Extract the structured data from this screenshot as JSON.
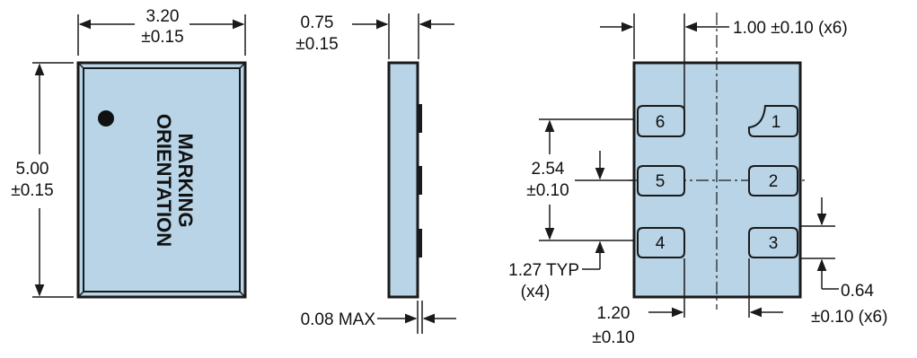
{
  "top_view": {
    "width_value": "3.20",
    "width_tol": "±0.15",
    "height_value": "5.00",
    "height_tol": "±0.15",
    "marking_line1": "MARKING",
    "marking_line2": "ORIENTATION"
  },
  "side_view": {
    "thickness_value": "0.75",
    "thickness_tol": "±0.15",
    "standoff": "0.08 MAX"
  },
  "bottom_view": {
    "pad_width": "1.00 ±0.10 (x6)",
    "pitch_value": "2.54",
    "pitch_tol": "±0.10",
    "typ_spacing": "1.27 TYP",
    "typ_count": "(x4)",
    "pad_height": "0.64",
    "pad_height_tol": "±0.10 (x6)",
    "edge_value": "1.20",
    "edge_tol": "±0.10",
    "pads": [
      "1",
      "2",
      "3",
      "4",
      "5",
      "6"
    ]
  },
  "colors": {
    "body_fill": "#b8d4e6",
    "outline": "#1a1a1a"
  }
}
